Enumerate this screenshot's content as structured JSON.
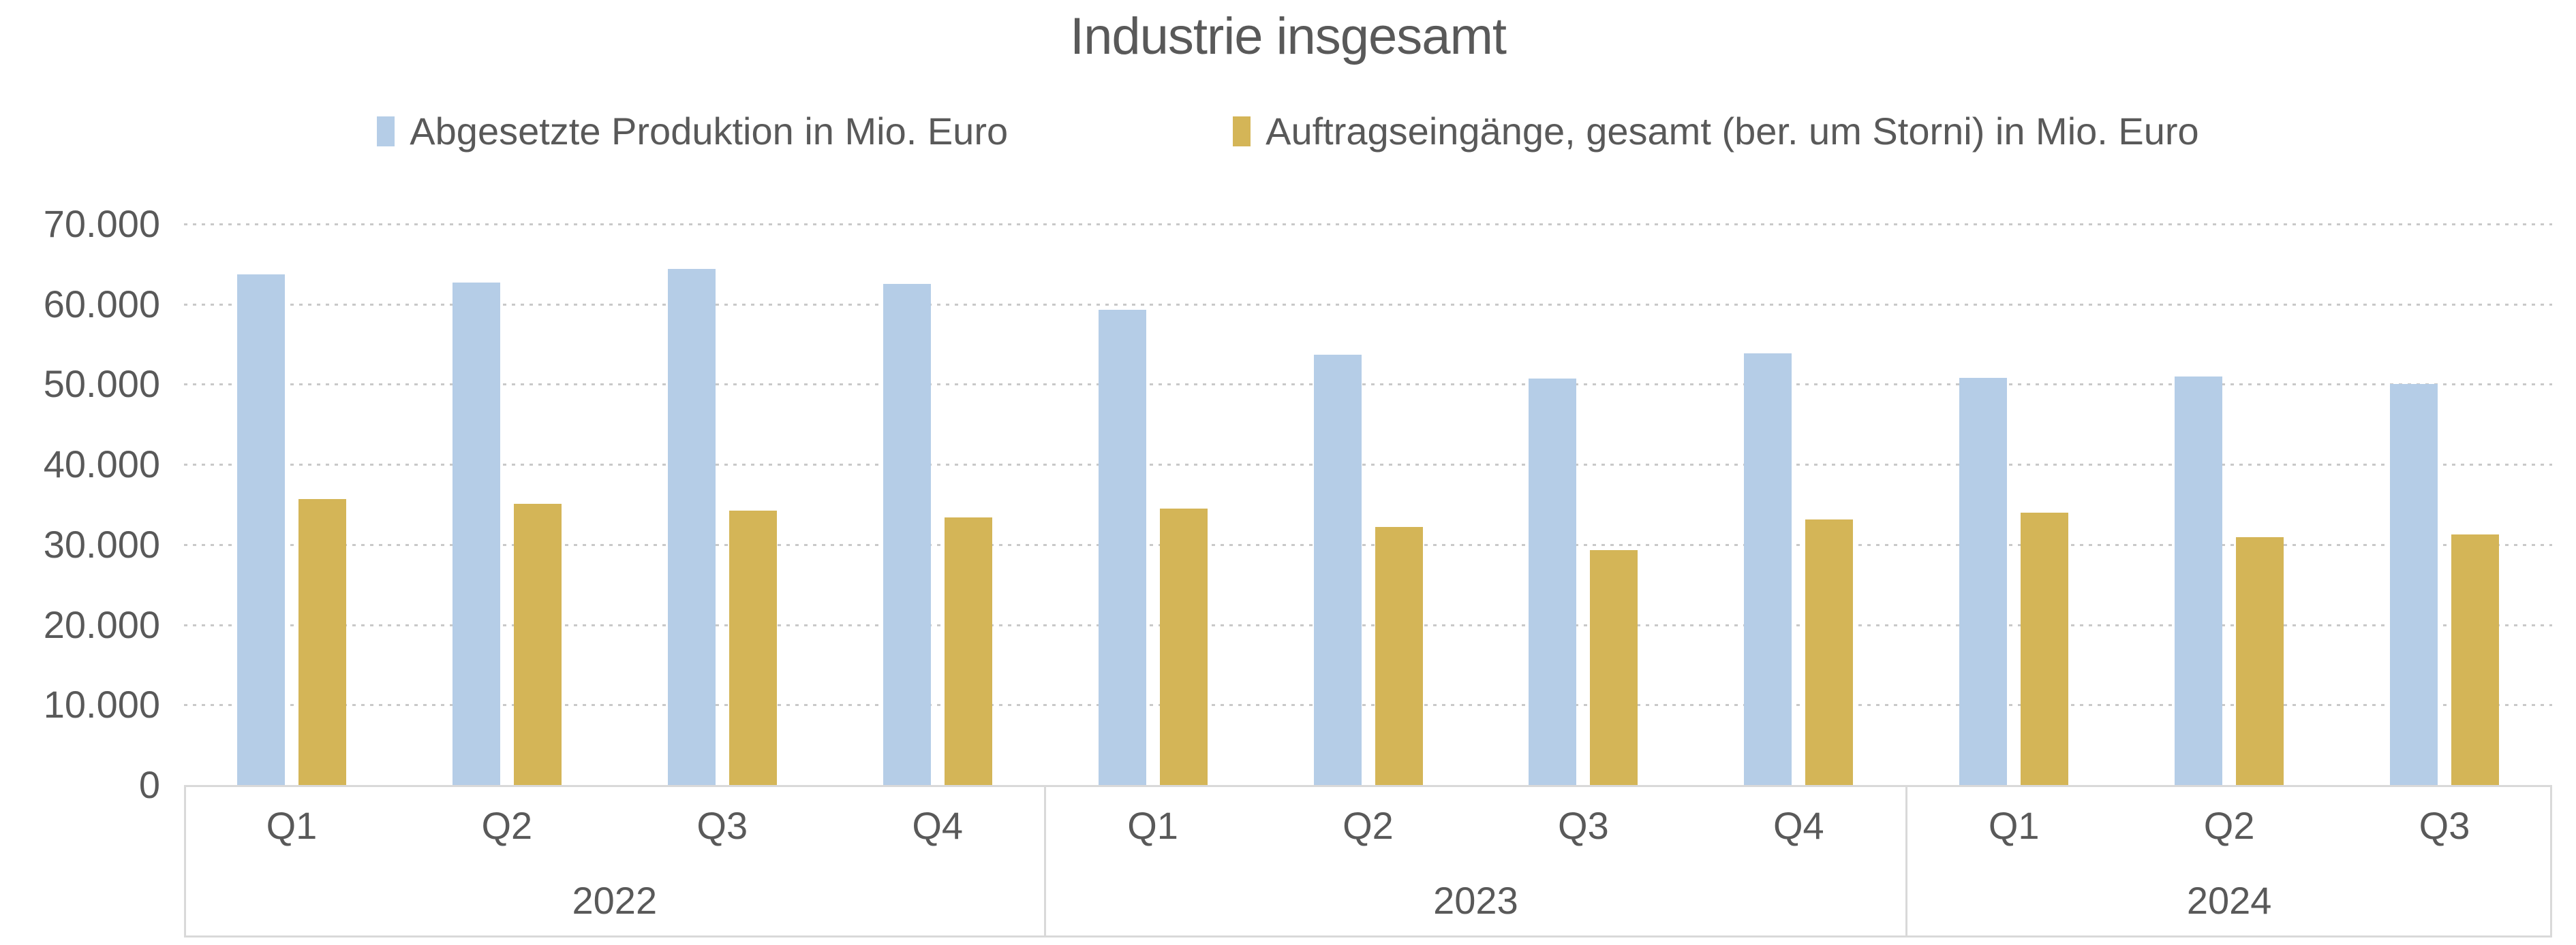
{
  "title": "Industrie insgesamt",
  "colors": {
    "produktion": "#b5cde7",
    "auftragseingaenge": "#d4b557",
    "text": "#595959",
    "gridline": "#c9c9c9",
    "axis_border": "#d9d9d9"
  },
  "chart_data": {
    "type": "bar",
    "title": "Industrie insgesamt",
    "categories": [
      "Q1",
      "Q2",
      "Q3",
      "Q4",
      "Q1",
      "Q2",
      "Q3",
      "Q4",
      "Q1",
      "Q2",
      "Q3"
    ],
    "year_groups": [
      {
        "label": "2022",
        "span": 4
      },
      {
        "label": "2023",
        "span": 4
      },
      {
        "label": "2024",
        "span": 3
      }
    ],
    "series": [
      {
        "name": "Abgesetzte Produktion in Mio. Euro",
        "color": "#b5cde7",
        "values": [
          63700,
          62700,
          64400,
          62500,
          59300,
          53700,
          50700,
          53900,
          50800,
          51000,
          50000
        ]
      },
      {
        "name": "Auftragseingänge, gesamt (ber. um Storni) in Mio. Euro",
        "color": "#d4b557",
        "values": [
          35700,
          35100,
          34200,
          33400,
          34500,
          32200,
          29300,
          33100,
          34000,
          30900,
          31300
        ]
      }
    ],
    "ylabel": "",
    "xlabel": "",
    "ylim": [
      0,
      70000
    ],
    "ytick_step": 10000,
    "ytick_labels": [
      "0",
      "10.000",
      "20.000",
      "30.000",
      "40.000",
      "50.000",
      "60.000",
      "70.000"
    ],
    "grid": "horizontal-dotted",
    "legend_position": "top"
  }
}
